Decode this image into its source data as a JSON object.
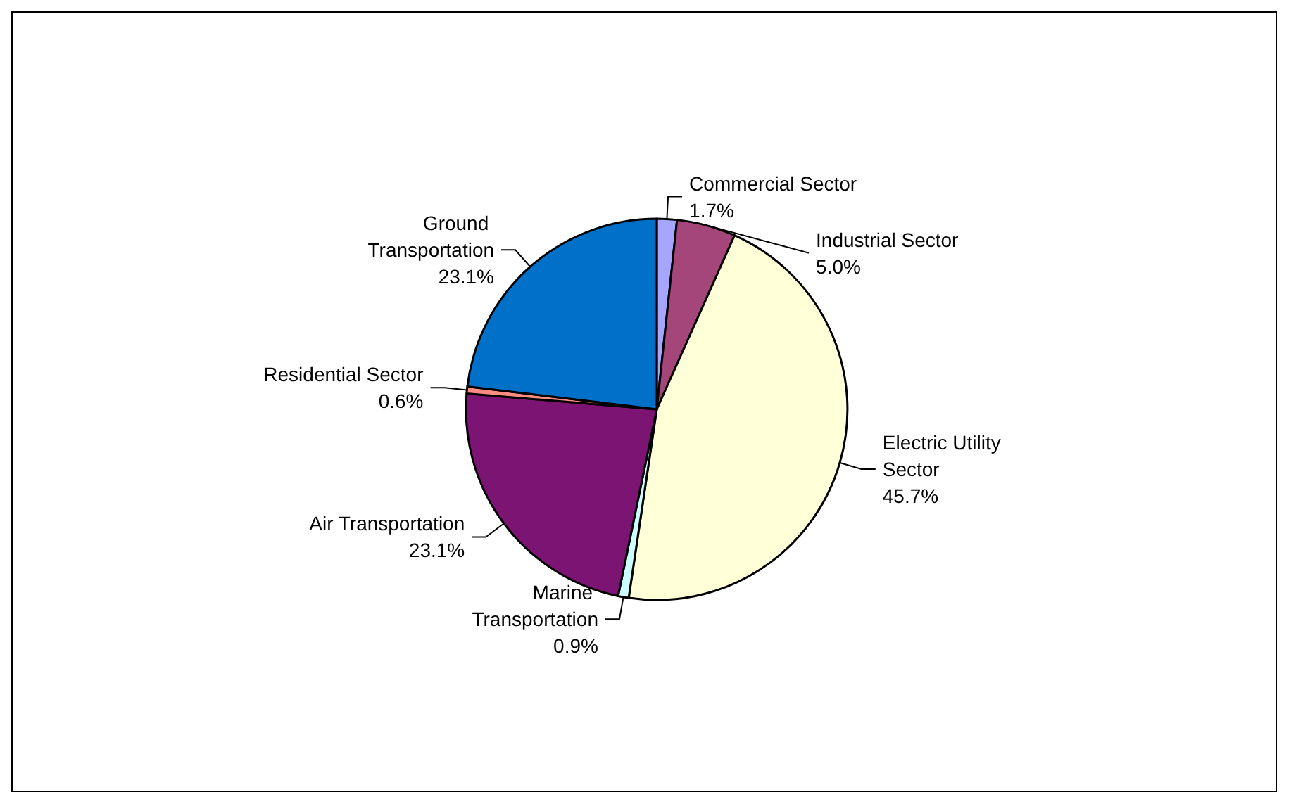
{
  "chart_data": {
    "type": "pie",
    "categories": [
      "Commercial Sector",
      "Industrial Sector",
      "Electric Utility Sector",
      "Marine Transportation",
      "Air Transportation",
      "Residential Sector",
      "Ground Transportation"
    ],
    "values": [
      1.7,
      5.0,
      45.7,
      0.9,
      23.1,
      0.6,
      23.1
    ],
    "colors": [
      "#a6a6ff",
      "#a4467a",
      "#ffffd8",
      "#ccffff",
      "#7b1472",
      "#ff8c80",
      "#0070c8"
    ],
    "value_labels": [
      "1.7%",
      "5.0%",
      "45.7%",
      "0.9%",
      "23.1%",
      "0.6%",
      "23.1%"
    ],
    "legend": false
  }
}
